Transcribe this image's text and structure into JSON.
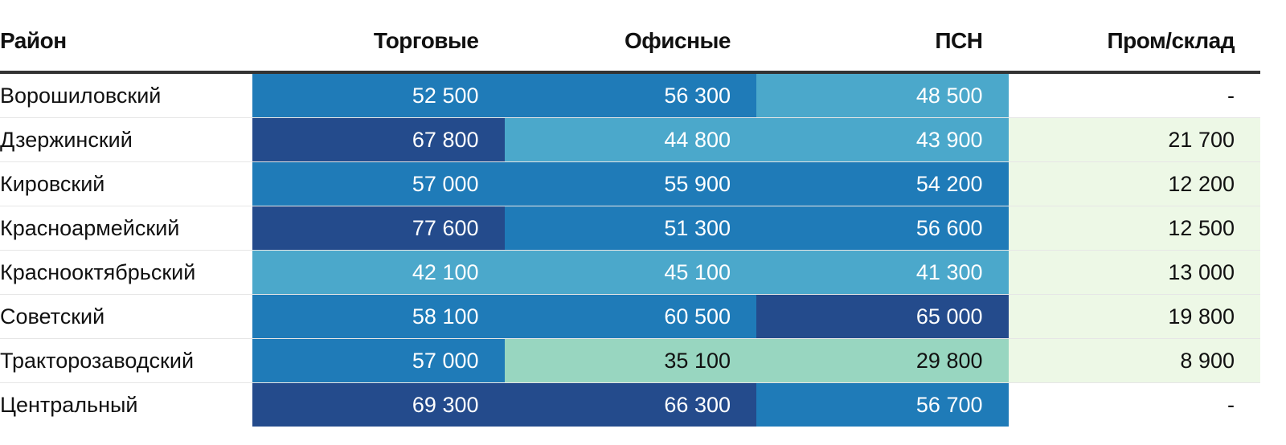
{
  "chart_data": {
    "type": "table",
    "columns": [
      "Район",
      "Торговые",
      "Офисные",
      "ПСН",
      "Пром/склад"
    ],
    "rows": [
      {
        "name": "Ворошиловский",
        "values": [
          "52 500",
          "56 300",
          "48 500",
          "-"
        ]
      },
      {
        "name": "Дзержинский",
        "values": [
          "67 800",
          "44 800",
          "43 900",
          "21 700"
        ]
      },
      {
        "name": "Кировский",
        "values": [
          "57 000",
          "55 900",
          "54 200",
          "12 200"
        ]
      },
      {
        "name": "Красноармейский",
        "values": [
          "77 600",
          "51 300",
          "56 600",
          "12 500"
        ]
      },
      {
        "name": "Краснооктябрьский",
        "values": [
          "42 100",
          "45 100",
          "41 300",
          "13 000"
        ]
      },
      {
        "name": "Советский",
        "values": [
          "58 100",
          "60 500",
          "65 000",
          "19 800"
        ]
      },
      {
        "name": "Тракторозаводский",
        "values": [
          "57 000",
          "35 100",
          "29 800",
          "8 900"
        ]
      },
      {
        "name": "Центральный",
        "values": [
          "69 300",
          "66 300",
          "56 700",
          "-"
        ]
      }
    ],
    "color_scale": [
      {
        "max": 25000,
        "color": "#edf8e6",
        "text": "#111111"
      },
      {
        "max": 40000,
        "color": "#98d6c0",
        "text": "#111111"
      },
      {
        "max": 50000,
        "color": "#4ba8cb",
        "text": "#ffffff"
      },
      {
        "max": 62000,
        "color": "#1f7bb8",
        "text": "#ffffff"
      },
      {
        "max": 1000000,
        "color": "#244b8c",
        "text": "#ffffff"
      }
    ]
  }
}
